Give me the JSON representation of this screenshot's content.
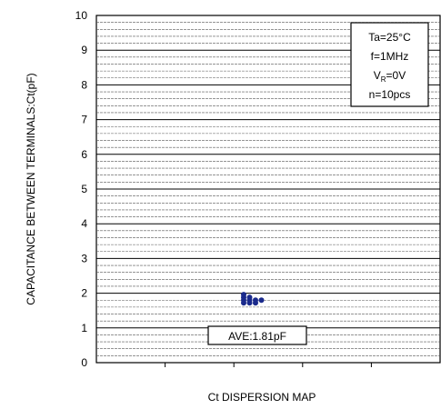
{
  "chart_data": {
    "type": "scatter",
    "title": "",
    "xlabel": "Ct DISPERSION MAP",
    "ylabel": "CAPACITANCE BETWEEN TERMINALS:Ct(pF)",
    "ylim": [
      0,
      10
    ],
    "yticks": [
      "0",
      "1",
      "2",
      "3",
      "4",
      "5",
      "6",
      "7",
      "8",
      "9",
      "10"
    ],
    "minor_grid_step": 0.2,
    "grid": true,
    "marker_color": "#1a2a8c",
    "points": [
      {
        "x": 1,
        "y": 1.96
      },
      {
        "x": 1,
        "y": 1.88
      },
      {
        "x": 1,
        "y": 1.8
      },
      {
        "x": 1,
        "y": 1.72
      },
      {
        "x": 2,
        "y": 1.88
      },
      {
        "x": 2,
        "y": 1.8
      },
      {
        "x": 2,
        "y": 1.72
      },
      {
        "x": 3,
        "y": 1.8
      },
      {
        "x": 3,
        "y": 1.72
      },
      {
        "x": 4,
        "y": 1.8
      }
    ],
    "conditions": {
      "line1": "Ta=25°C",
      "line2": "f=1MHz",
      "line3_main": "V",
      "line3_sub": "R",
      "line3_rest": "=0V",
      "line4": "n=10pcs"
    },
    "average_label": "AVE:1.81pF"
  }
}
